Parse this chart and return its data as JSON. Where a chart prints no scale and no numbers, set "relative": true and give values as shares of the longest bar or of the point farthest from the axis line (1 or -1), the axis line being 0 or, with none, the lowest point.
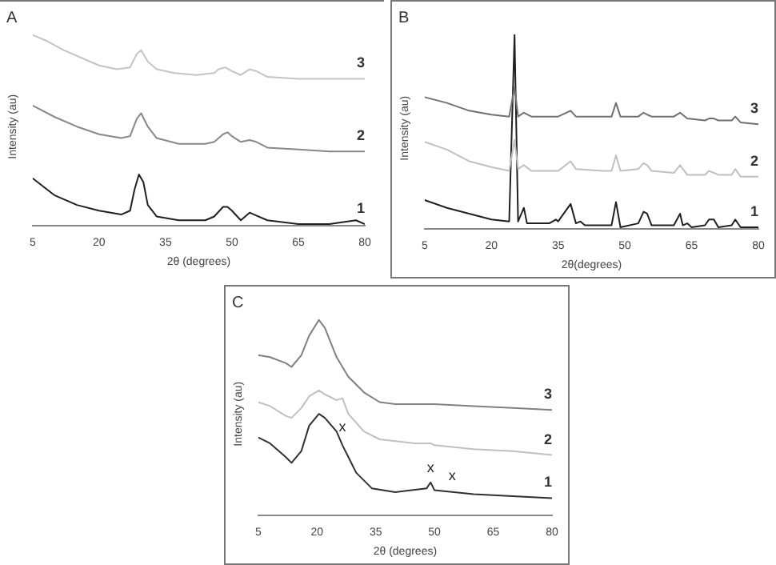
{
  "chart_data": [
    {
      "type": "line",
      "title": "A",
      "xlabel": "2θ (degrees)",
      "ylabel": "Intensity (au)",
      "relative": true,
      "legend": false,
      "grid": false,
      "marker": "none",
      "xlim": [
        5,
        80
      ],
      "xticks": [
        5,
        20,
        35,
        50,
        65,
        80
      ],
      "series": [
        {
          "name": "3",
          "color": "#c4c4c4",
          "x": [
            5,
            8,
            12,
            16,
            20,
            24,
            27,
            28.5,
            29.5,
            31,
            33,
            37,
            42,
            46,
            47,
            48.5,
            50,
            52,
            54,
            55.5,
            58,
            65,
            72,
            80
          ],
          "values": [
            1.0,
            0.97,
            0.92,
            0.88,
            0.84,
            0.82,
            0.83,
            0.9,
            0.92,
            0.86,
            0.82,
            0.8,
            0.79,
            0.8,
            0.82,
            0.83,
            0.81,
            0.79,
            0.82,
            0.81,
            0.78,
            0.77,
            0.77,
            0.77
          ]
        },
        {
          "name": "2",
          "color": "#888888",
          "x": [
            5,
            10,
            15,
            20,
            25,
            27,
            28.5,
            29.5,
            31,
            33,
            38,
            44,
            46,
            48,
            49,
            50,
            52,
            54,
            55.5,
            58,
            65,
            72,
            80
          ],
          "values": [
            0.63,
            0.57,
            0.52,
            0.48,
            0.46,
            0.47,
            0.56,
            0.59,
            0.52,
            0.46,
            0.43,
            0.43,
            0.44,
            0.48,
            0.49,
            0.47,
            0.44,
            0.45,
            0.44,
            0.41,
            0.4,
            0.39,
            0.39
          ]
        },
        {
          "name": "1",
          "color": "#202020",
          "x": [
            5,
            10,
            15,
            20,
            25,
            27,
            28,
            29,
            30,
            31,
            33,
            38,
            44,
            46,
            48,
            49,
            50,
            52,
            54,
            55,
            58,
            65,
            72,
            78,
            80
          ],
          "values": [
            0.25,
            0.16,
            0.11,
            0.08,
            0.06,
            0.08,
            0.19,
            0.27,
            0.23,
            0.11,
            0.05,
            0.03,
            0.03,
            0.05,
            0.1,
            0.1,
            0.08,
            0.03,
            0.07,
            0.06,
            0.03,
            0.01,
            0.01,
            0.03,
            0.01
          ]
        }
      ]
    },
    {
      "type": "line",
      "title": "B",
      "xlabel": "2θ(degrees)",
      "ylabel": "Intensity (au)",
      "relative": true,
      "legend": false,
      "grid": false,
      "marker": "none",
      "xlim": [
        5,
        80
      ],
      "xticks": [
        5,
        20,
        35,
        50,
        65,
        80
      ],
      "series": [
        {
          "name": "3",
          "color": "#707070",
          "x": [
            5,
            10,
            15,
            20,
            24,
            25.2,
            26,
            27.3,
            29,
            35,
            37.8,
            39,
            45,
            47,
            48,
            49,
            53,
            54.2,
            55,
            56,
            61,
            62.4,
            64,
            68,
            68.9,
            70,
            71,
            74,
            74.8,
            76,
            80
          ],
          "values": [
            0.68,
            0.65,
            0.61,
            0.59,
            0.58,
            0.73,
            0.58,
            0.6,
            0.58,
            0.58,
            0.61,
            0.58,
            0.58,
            0.58,
            0.65,
            0.58,
            0.58,
            0.6,
            0.59,
            0.58,
            0.58,
            0.6,
            0.57,
            0.56,
            0.57,
            0.57,
            0.56,
            0.56,
            0.58,
            0.55,
            0.54
          ]
        },
        {
          "name": "2",
          "color": "#c0c0c0",
          "x": [
            5,
            10,
            15,
            20,
            24,
            25.2,
            26,
            27.3,
            29,
            35,
            37.8,
            39,
            45,
            47,
            48,
            49,
            53,
            54.2,
            55,
            56,
            61,
            62.4,
            64,
            68,
            68.9,
            70,
            71,
            74,
            74.8,
            76,
            80
          ],
          "values": [
            0.45,
            0.41,
            0.35,
            0.32,
            0.3,
            0.46,
            0.31,
            0.33,
            0.3,
            0.3,
            0.35,
            0.31,
            0.3,
            0.3,
            0.38,
            0.3,
            0.31,
            0.34,
            0.33,
            0.3,
            0.29,
            0.33,
            0.28,
            0.28,
            0.3,
            0.29,
            0.28,
            0.28,
            0.31,
            0.27,
            0.27
          ]
        },
        {
          "name": "1",
          "color": "#202020",
          "x": [
            5,
            10,
            15,
            20,
            24,
            25.2,
            26,
            27.3,
            28,
            33,
            34.5,
            35,
            37.8,
            39,
            40,
            41,
            47,
            48,
            49,
            53,
            54.2,
            55,
            56,
            61,
            62.4,
            63,
            64,
            65,
            68,
            68.9,
            70,
            71,
            74,
            74.8,
            76,
            80
          ],
          "values": [
            0.15,
            0.11,
            0.08,
            0.05,
            0.04,
            1.0,
            0.04,
            0.11,
            0.03,
            0.03,
            0.05,
            0.04,
            0.13,
            0.03,
            0.04,
            0.02,
            0.02,
            0.14,
            0.01,
            0.03,
            0.09,
            0.08,
            0.02,
            0.02,
            0.08,
            0.02,
            0.03,
            0.01,
            0.02,
            0.05,
            0.05,
            0.01,
            0.02,
            0.05,
            0.01,
            0.01
          ]
        }
      ]
    },
    {
      "type": "line",
      "title": "C",
      "xlabel": "2θ (degrees)",
      "ylabel": "Intensity (au)",
      "relative": true,
      "legend": false,
      "grid": false,
      "marker": "none",
      "xlim": [
        5,
        80
      ],
      "xticks": [
        5,
        20,
        35,
        50,
        65,
        80
      ],
      "annotations": [
        {
          "text": "x",
          "x": 26.5,
          "y": 0.4
        },
        {
          "text": "x",
          "x": 49,
          "y": 0.19
        },
        {
          "text": "x",
          "x": 54.5,
          "y": 0.15
        }
      ],
      "series": [
        {
          "name": "3",
          "color": "#808080",
          "x": [
            5,
            8,
            12,
            13.5,
            16,
            18,
            20.5,
            22,
            25,
            28,
            32,
            36,
            40,
            50,
            60,
            70,
            80
          ],
          "values": [
            0.82,
            0.81,
            0.78,
            0.76,
            0.82,
            0.92,
            1.0,
            0.96,
            0.81,
            0.71,
            0.63,
            0.58,
            0.57,
            0.57,
            0.56,
            0.55,
            0.54
          ]
        },
        {
          "name": "2",
          "color": "#c0c0c0",
          "x": [
            5,
            8,
            12,
            13.5,
            16,
            18,
            20.5,
            22,
            25,
            26.5,
            28,
            32,
            36,
            45,
            49,
            50,
            60,
            70,
            80
          ],
          "values": [
            0.58,
            0.56,
            0.51,
            0.5,
            0.55,
            0.61,
            0.64,
            0.62,
            0.59,
            0.6,
            0.52,
            0.43,
            0.39,
            0.37,
            0.37,
            0.36,
            0.34,
            0.33,
            0.31
          ]
        },
        {
          "name": "1",
          "color": "#303030",
          "x": [
            5,
            8,
            12,
            13.5,
            16,
            18,
            20.5,
            22,
            25,
            26.5,
            28,
            30,
            34,
            40,
            48,
            49,
            50,
            55,
            60,
            70,
            80
          ],
          "values": [
            0.4,
            0.37,
            0.3,
            0.27,
            0.33,
            0.46,
            0.52,
            0.5,
            0.43,
            0.36,
            0.3,
            0.22,
            0.14,
            0.12,
            0.14,
            0.17,
            0.13,
            0.12,
            0.11,
            0.1,
            0.09
          ]
        }
      ]
    }
  ]
}
